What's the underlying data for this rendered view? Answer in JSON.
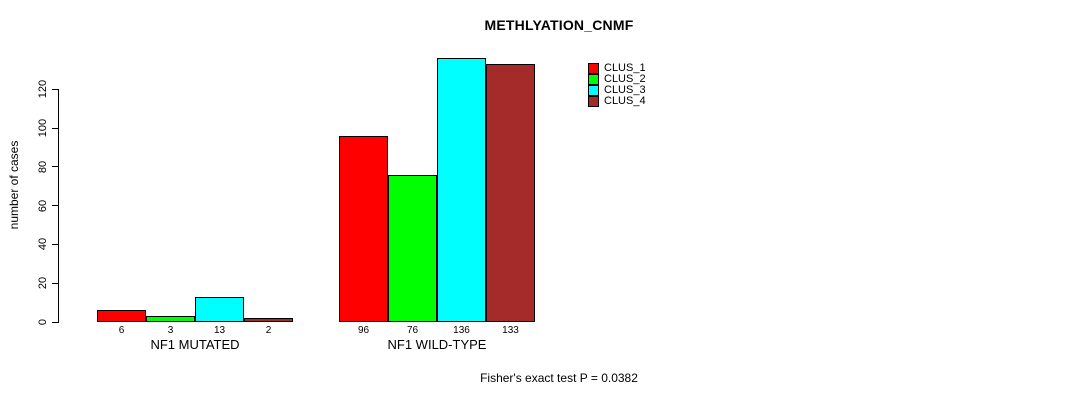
{
  "figure": {
    "background": "#ffffff",
    "text_color": "#000000"
  },
  "chart_data": {
    "type": "bar",
    "title": "METHLYATION_CNMF",
    "ylabel": "number of cases",
    "xlabel": "",
    "ylim": [
      0,
      136
    ],
    "yticks": [
      0,
      20,
      40,
      60,
      80,
      100,
      120
    ],
    "grid": false,
    "legend_position": "top-right",
    "bar_border_color": "#000000",
    "legend": [
      {
        "name": "CLUS_1",
        "color": "#ff0000"
      },
      {
        "name": "CLUS_2",
        "color": "#00ff00"
      },
      {
        "name": "CLUS_3",
        "color": "#00ffff"
      },
      {
        "name": "CLUS_4",
        "color": "#a52a2a"
      }
    ],
    "groups": [
      {
        "label": "NF1 MUTATED",
        "values": [
          6,
          3,
          13,
          2
        ]
      },
      {
        "label": "NF1 WILD-TYPE",
        "values": [
          96,
          76,
          136,
          133
        ]
      }
    ],
    "footer": "Fisher's exact test P = 0.0382"
  }
}
